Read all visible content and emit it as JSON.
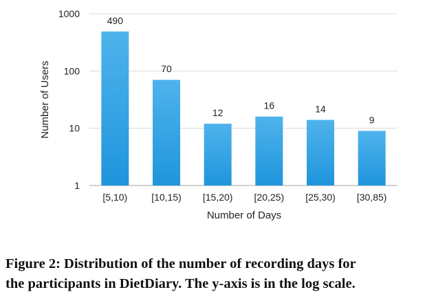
{
  "chart_data": {
    "type": "bar",
    "categories": [
      "[5,10)",
      "[10,15)",
      "[15,20)",
      "[20,25)",
      "[25,30)",
      "[30,85)"
    ],
    "values": [
      490,
      70,
      12,
      16,
      14,
      9
    ],
    "data_labels": [
      "490",
      "70",
      "12",
      "16",
      "14",
      "9"
    ],
    "xlabel": "Number of Days",
    "ylabel": "Number of Users",
    "yscale": "log",
    "ylim": [
      1,
      1000
    ],
    "yticks": [
      "1",
      "10",
      "100",
      "1000"
    ],
    "grid": true,
    "legend": "none",
    "bar_color_top": "#4fb3ec",
    "bar_color_bottom": "#1f95dc"
  },
  "caption": {
    "line1": "Figure 2: Distribution of the number of recording days for",
    "line2": "the participants in DietDiary. The y-axis is in the log scale."
  }
}
